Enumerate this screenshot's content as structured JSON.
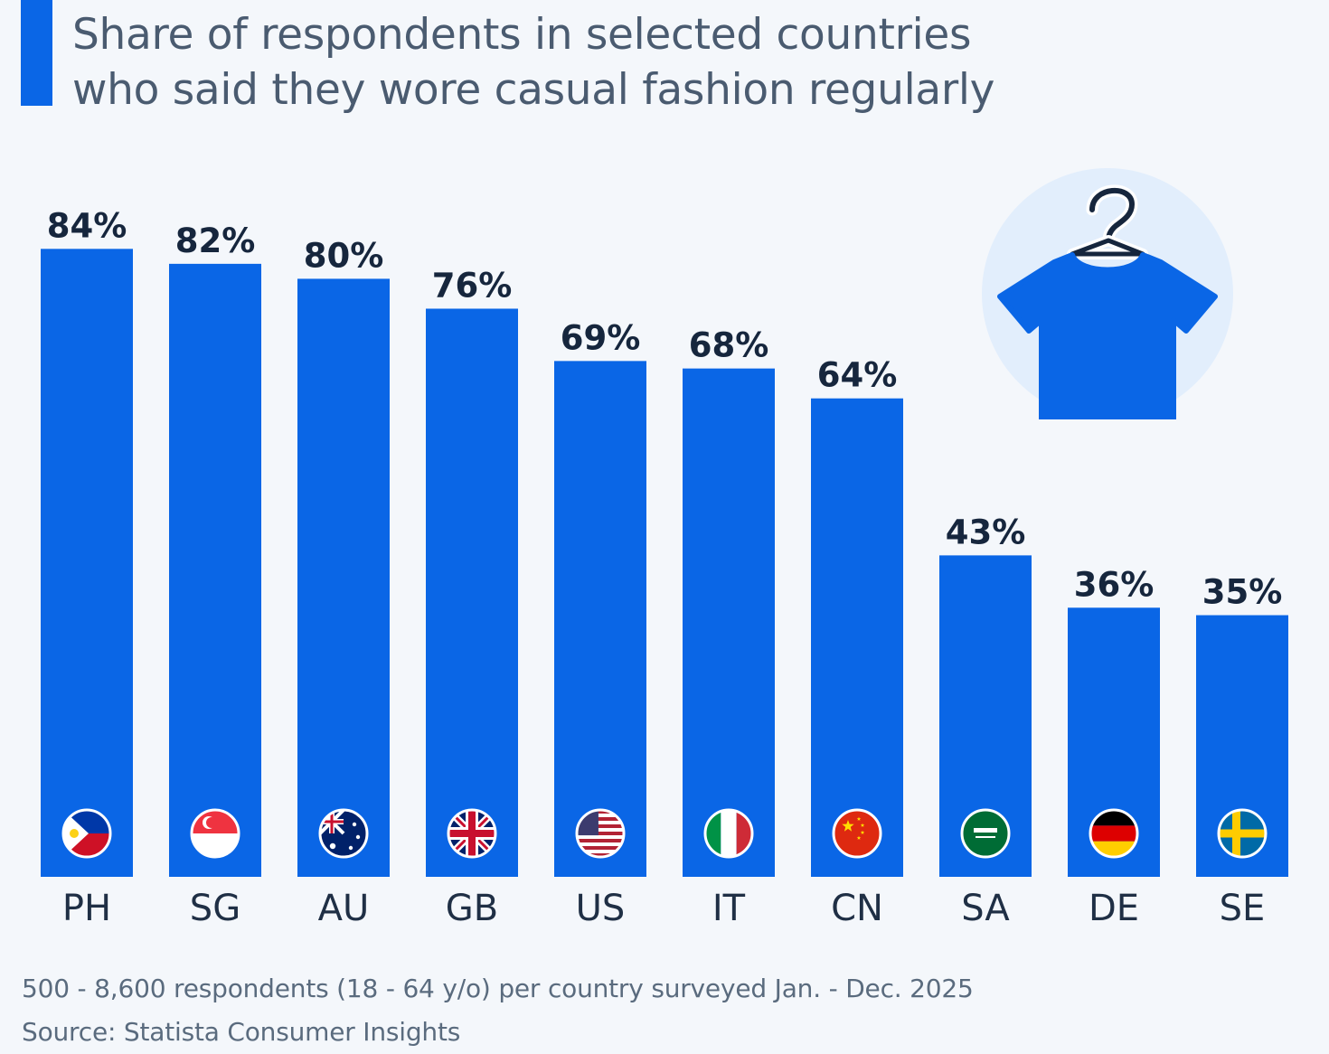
{
  "title": {
    "line1": "Share of respondents in selected countries",
    "line2": "who said they wore casual fashion regularly"
  },
  "footer": {
    "note": "500 - 8,600 respondents (18 - 64 y/o) per country surveyed Jan. - Dec. 2025",
    "source": "Source: Statista Consumer Insights"
  },
  "colors": {
    "bar": "#0a66e6",
    "accent": "#0a66e6",
    "label": "#16263d",
    "category": "#1f2f45",
    "background": "#f4f7fb",
    "icon_circle": "#e2eefc"
  },
  "icons": {
    "illustration": "t-shirt-on-hanger-icon"
  },
  "chart_data": {
    "type": "bar",
    "title": "Share of respondents in selected countries who said they wore casual fashion regularly",
    "xlabel": "",
    "ylabel": "",
    "ylim": [
      0,
      100
    ],
    "grid": false,
    "value_suffix": "%",
    "categories": [
      "PH",
      "SG",
      "AU",
      "GB",
      "US",
      "IT",
      "CN",
      "SA",
      "DE",
      "SE"
    ],
    "values": [
      84,
      82,
      80,
      76,
      69,
      68,
      64,
      43,
      36,
      35
    ],
    "labels": [
      "84%",
      "82%",
      "80%",
      "76%",
      "69%",
      "68%",
      "64%",
      "43%",
      "36%",
      "35%"
    ],
    "flags": [
      "philippines-flag-icon",
      "singapore-flag-icon",
      "australia-flag-icon",
      "united-kingdom-flag-icon",
      "united-states-flag-icon",
      "italy-flag-icon",
      "china-flag-icon",
      "saudi-arabia-flag-icon",
      "germany-flag-icon",
      "sweden-flag-icon"
    ]
  }
}
